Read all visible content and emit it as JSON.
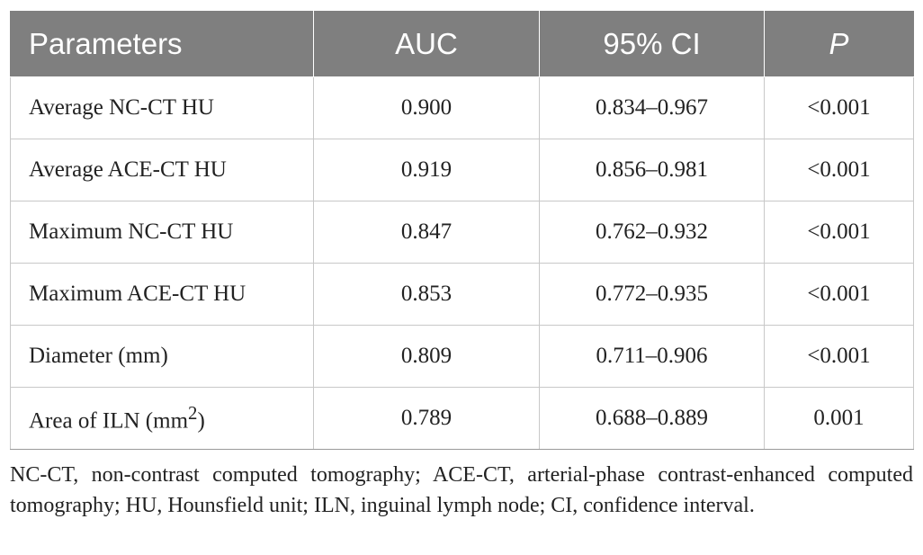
{
  "table": {
    "headers": [
      "Parameters",
      "AUC",
      "95% CI",
      "P"
    ],
    "rows": [
      {
        "parameter": "Average NC-CT HU",
        "auc": "0.900",
        "ci": "0.834–0.967",
        "p": "<0.001"
      },
      {
        "parameter": "Average ACE-CT HU",
        "auc": "0.919",
        "ci": "0.856–0.981",
        "p": "<0.001"
      },
      {
        "parameter": "Maximum NC-CT HU",
        "auc": "0.847",
        "ci": "0.762–0.932",
        "p": "<0.001"
      },
      {
        "parameter": "Maximum ACE-CT HU",
        "auc": "0.853",
        "ci": "0.772–0.935",
        "p": "<0.001"
      },
      {
        "parameter": "Diameter (mm)",
        "auc": "0.809",
        "ci": "0.711–0.906",
        "p": "<0.001"
      },
      {
        "parameter": "Area of ILN (mm",
        "parameter_superscript": "2",
        "parameter_suffix": ")",
        "auc": "0.789",
        "ci": "0.688–0.889",
        "p": "0.001"
      }
    ]
  },
  "footnote": "NC-CT, non-contrast computed tomography; ACE-CT, arterial-phase contrast-enhanced computed tomography; HU, Hounsfield unit; ILN, inguinal lymph node; CI, confidence interval.",
  "colors": {
    "header_background": "#7f7f7f",
    "header_text": "#ffffff",
    "grid_line": "#c8c8c8",
    "body_text": "#222222"
  }
}
